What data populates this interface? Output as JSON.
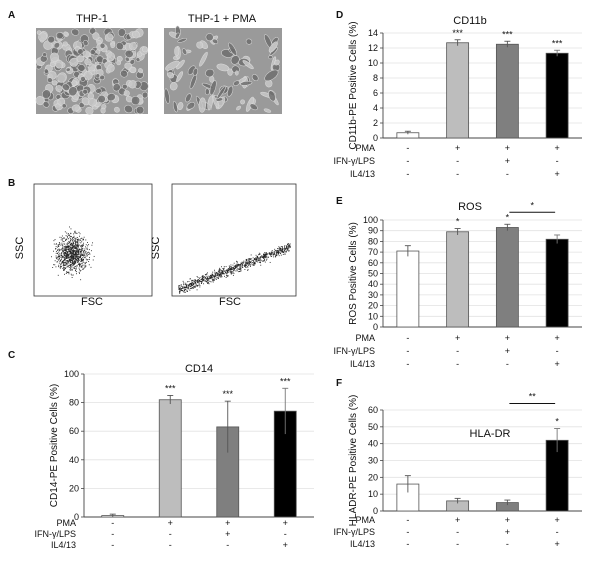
{
  "panel_letters": {
    "a": "A",
    "b": "B",
    "c": "C",
    "d": "D",
    "e": "E",
    "f": "F"
  },
  "micrographs": {
    "left_label": "THP-1",
    "right_label": "THP-1 + PMA"
  },
  "scatter": {
    "y_label": "SSC",
    "x_label": "FSC"
  },
  "treatments": {
    "rows": [
      "PMA",
      "IFN-γ/LPS",
      "IL4/13"
    ],
    "signs": [
      [
        "-",
        "+",
        "+",
        "+"
      ],
      [
        "-",
        "-",
        "+",
        "-"
      ],
      [
        "-",
        "-",
        "-",
        "+"
      ]
    ]
  },
  "colors": {
    "bar_fills": [
      "#ffffff",
      "#bdbdbd",
      "#7f7f7f",
      "#000000"
    ],
    "bar_stroke": "#555555"
  },
  "chart_data": [
    {
      "panel": "C",
      "type": "bar",
      "title": "CD14",
      "ylabel": "CD14-PE Positive Cells (%)",
      "ylim": [
        0,
        100
      ],
      "yticks": [
        0,
        20,
        40,
        60,
        80,
        100
      ],
      "values": [
        1,
        82,
        63,
        74
      ],
      "errors": [
        1,
        3,
        18,
        16
      ],
      "significance": [
        "",
        "***",
        "***",
        "***"
      ]
    },
    {
      "panel": "D",
      "type": "bar",
      "title": "CD11b",
      "ylabel": "CD11b-PE Positive Cells (%)",
      "ylim": [
        0,
        14
      ],
      "yticks": [
        0,
        2,
        4,
        6,
        8,
        10,
        12,
        14
      ],
      "values": [
        0.7,
        12.7,
        12.5,
        11.3
      ],
      "errors": [
        0.2,
        0.4,
        0.4,
        0.4
      ],
      "significance": [
        "",
        "***",
        "***",
        "***"
      ]
    },
    {
      "panel": "E",
      "type": "bar",
      "title": "ROS",
      "ylabel": "ROS Positive Cells (%)",
      "ylim": [
        0,
        100
      ],
      "yticks": [
        0,
        10,
        20,
        30,
        40,
        50,
        60,
        70,
        80,
        90,
        100
      ],
      "values": [
        71,
        89,
        93,
        82
      ],
      "errors": [
        5,
        3,
        3,
        4
      ],
      "significance": [
        "",
        "*",
        "*",
        ""
      ],
      "bracket": {
        "from": 2,
        "to": 3,
        "label": "*"
      }
    },
    {
      "panel": "F",
      "type": "bar",
      "title": "HLA-DR",
      "ylabel": "HLADR-PE Positive Cells (%)",
      "ylim": [
        0,
        60
      ],
      "yticks": [
        0,
        10,
        20,
        30,
        40,
        50,
        60
      ],
      "values": [
        16,
        6,
        5,
        42
      ],
      "errors": [
        5,
        1.5,
        1.5,
        7
      ],
      "significance": [
        "",
        "",
        "",
        "*"
      ],
      "bracket": {
        "from": 2,
        "to": 3,
        "label": "**"
      }
    }
  ]
}
